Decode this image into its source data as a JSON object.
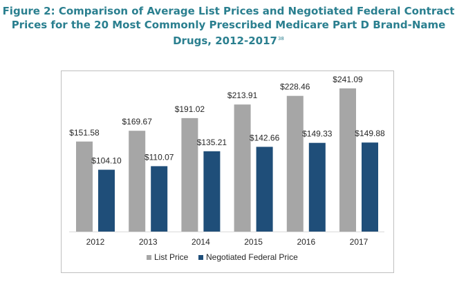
{
  "figure": {
    "title_line1": "Figure 2: Comparison of Average List Prices and Negotiated Federal Contract",
    "title_line2": "Prices for the 20 Most Commonly Prescribed Medicare Part D Brand-Name",
    "title_line3": "Drugs, 2012-2017",
    "footnote_ref": "38"
  },
  "chart_data": {
    "type": "bar",
    "title": "Comparison of Average List Prices and Negotiated Federal Contract Prices for the 20 Most Commonly Prescribed Medicare Part D Brand-Name Drugs, 2012-2017",
    "xlabel": "",
    "ylabel": "",
    "ylim": [
      0,
      270
    ],
    "grid": false,
    "legend": "bottom-center",
    "categories": [
      "2012",
      "2013",
      "2014",
      "2015",
      "2016",
      "2017"
    ],
    "series": [
      {
        "name": "List Price",
        "color": "#a6a6a6",
        "values": [
          151.58,
          169.67,
          191.02,
          213.91,
          228.46,
          241.09
        ],
        "labels": [
          "$151.58",
          "$169.67",
          "$191.02",
          "$213.91",
          "$228.46",
          "$241.09"
        ]
      },
      {
        "name": "Negotiated Federal Price",
        "color": "#1f4e79",
        "values": [
          104.1,
          110.07,
          135.21,
          142.66,
          149.33,
          149.88
        ],
        "labels": [
          "$104.10",
          "$110.07",
          "$135.21",
          "$142.66",
          "$149.33",
          "$149.88"
        ]
      }
    ]
  }
}
